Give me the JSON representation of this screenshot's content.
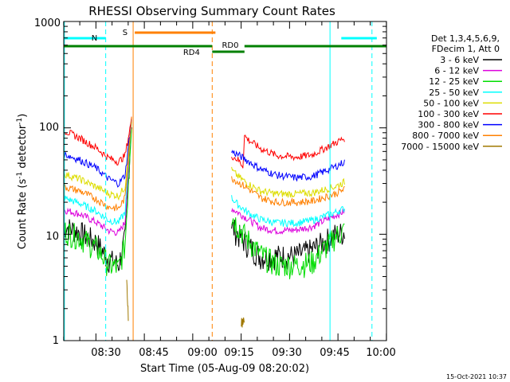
{
  "chart_data": {
    "type": "line",
    "title": "RHESSI Observing Summary Count Rates",
    "xlabel": "Start Time (05-Aug-09 08:20:02)",
    "ylabel_main": "Count Rate (s",
    "ylabel_sup1": "-1",
    "ylabel_mid": " detector",
    "ylabel_sup2": "-1",
    "ylabel_end": ")",
    "y_scale": "log",
    "xlim": [
      "08:20:02",
      "10:00:00"
    ],
    "ylim": [
      1,
      1000
    ],
    "x_ticks": [
      "08:30",
      "08:45",
      "09:00",
      "09:15",
      "09:30",
      "09:45",
      "10:00"
    ],
    "y_ticks": [
      "1",
      "10",
      "100",
      "1000"
    ],
    "legend_header": [
      "Det 1,3,4,5,6,9,",
      "FDecim 1, Att 0"
    ],
    "legend_position": "right",
    "timestamp": "15-Oct-2021 10:37",
    "series": [
      {
        "name": "3 - 6 keV",
        "color": "#000000",
        "pre": [
          [
            0,
            12
          ],
          [
            5,
            10.5
          ],
          [
            10,
            8.5
          ],
          [
            14,
            5.8
          ],
          [
            17,
            5.2
          ],
          [
            19,
            9
          ],
          [
            21,
            120
          ]
        ],
        "post": [
          [
            52,
            12
          ],
          [
            54,
            10
          ],
          [
            57,
            8
          ],
          [
            61,
            6.2
          ],
          [
            66,
            6.3
          ],
          [
            72,
            6.3
          ],
          [
            77,
            7.2
          ],
          [
            84,
            10
          ],
          [
            87,
            10.5
          ]
        ]
      },
      {
        "name": "6 - 12 keV",
        "color": "#dd00dd",
        "pre": [
          [
            0,
            17
          ],
          [
            5,
            15.5
          ],
          [
            10,
            13
          ],
          [
            14,
            10.8
          ],
          [
            17,
            10.3
          ],
          [
            19,
            13
          ],
          [
            21,
            120
          ]
        ],
        "post": [
          [
            52,
            17.5
          ],
          [
            54,
            16
          ],
          [
            57,
            14
          ],
          [
            61,
            11.5
          ],
          [
            66,
            10.8
          ],
          [
            72,
            11
          ],
          [
            77,
            11.8
          ],
          [
            84,
            15
          ],
          [
            87,
            16.5
          ]
        ]
      },
      {
        "name": "12 - 25 keV",
        "color": "#00dd00",
        "pre": [
          [
            0,
            11
          ],
          [
            5,
            9.5
          ],
          [
            10,
            7.5
          ],
          [
            14,
            5.2
          ],
          [
            17,
            4.8
          ],
          [
            19,
            8
          ],
          [
            21,
            120
          ]
        ],
        "post": [
          [
            52,
            15
          ],
          [
            54,
            12
          ],
          [
            57,
            9
          ],
          [
            61,
            6.5
          ],
          [
            66,
            5.2
          ],
          [
            72,
            5.2
          ],
          [
            77,
            5.5
          ],
          [
            84,
            9.5
          ],
          [
            87,
            11
          ]
        ]
      },
      {
        "name": "25 - 50 keV",
        "color": "#00ffff",
        "pre": [
          [
            0,
            22
          ],
          [
            5,
            19.5
          ],
          [
            10,
            16.5
          ],
          [
            14,
            13.5
          ],
          [
            17,
            13
          ],
          [
            19,
            16
          ],
          [
            21,
            120
          ]
        ],
        "post": [
          [
            52,
            22
          ],
          [
            54,
            19
          ],
          [
            57,
            16
          ],
          [
            61,
            13.8
          ],
          [
            66,
            12.8
          ],
          [
            72,
            12.8
          ],
          [
            77,
            13.5
          ],
          [
            84,
            16
          ],
          [
            87,
            17.5
          ]
        ]
      },
      {
        "name": "50 - 100 keV",
        "color": "#dddd00",
        "pre": [
          [
            0,
            37
          ],
          [
            5,
            33
          ],
          [
            10,
            28
          ],
          [
            14,
            24
          ],
          [
            17,
            23
          ],
          [
            19,
            28
          ],
          [
            21,
            120
          ]
        ],
        "post": [
          [
            52,
            40
          ],
          [
            54,
            35
          ],
          [
            57,
            30
          ],
          [
            61,
            25.5
          ],
          [
            66,
            24
          ],
          [
            72,
            24
          ],
          [
            77,
            24.5
          ],
          [
            84,
            28
          ],
          [
            87,
            31
          ]
        ]
      },
      {
        "name": "100 - 300 keV",
        "color": "#ff0000",
        "pre": [
          [
            0,
            95
          ],
          [
            5,
            80
          ],
          [
            10,
            65
          ],
          [
            14,
            52
          ],
          [
            17,
            48
          ],
          [
            19,
            55
          ],
          [
            21,
            120
          ]
        ],
        "post": [
          [
            52,
            55
          ],
          [
            54,
            50
          ],
          [
            55.5,
            44
          ],
          [
            56,
            85
          ],
          [
            57,
            78
          ],
          [
            61,
            64
          ],
          [
            66,
            55
          ],
          [
            72,
            53
          ],
          [
            77,
            56
          ],
          [
            84,
            72
          ],
          [
            87,
            80
          ]
        ]
      },
      {
        "name": "300 - 800 keV",
        "color": "#0000ff",
        "pre": [
          [
            0,
            57
          ],
          [
            5,
            50
          ],
          [
            10,
            42
          ],
          [
            14,
            33
          ],
          [
            17,
            30
          ],
          [
            19,
            36
          ],
          [
            21,
            120
          ]
        ],
        "post": [
          [
            52,
            60
          ],
          [
            54,
            56
          ],
          [
            57,
            49
          ],
          [
            61,
            41
          ],
          [
            66,
            36
          ],
          [
            72,
            34
          ],
          [
            77,
            35
          ],
          [
            84,
            43
          ],
          [
            87,
            48
          ]
        ]
      },
      {
        "name": "800 - 7000 keV",
        "color": "#ff8000",
        "pre": [
          [
            0,
            28
          ],
          [
            5,
            25.5
          ],
          [
            10,
            21.5
          ],
          [
            14,
            18
          ],
          [
            17,
            17.5
          ],
          [
            19,
            22
          ],
          [
            21,
            120
          ]
        ],
        "post": [
          [
            52,
            34
          ],
          [
            54,
            31
          ],
          [
            57,
            27
          ],
          [
            61,
            22
          ],
          [
            66,
            20
          ],
          [
            72,
            20
          ],
          [
            77,
            20.5
          ],
          [
            84,
            24
          ],
          [
            87,
            26.5
          ]
        ]
      },
      {
        "name": "7000 - 15000 keV",
        "color": "#a07800",
        "pre": [
          [
            19.5,
            3.5
          ],
          [
            20,
            1.8
          ]
        ],
        "post": [
          [
            55,
            1.5
          ],
          [
            56,
            1.5
          ]
        ]
      }
    ],
    "annotations": {
      "S": {
        "label": "S",
        "color": "#ff8000",
        "x_start": 22,
        "x_end": 47
      },
      "N_left": {
        "label": "N",
        "color": "#00ffff",
        "x_start": 0,
        "x_end": 13
      },
      "N_right": {
        "label": "",
        "color": "#00ffff",
        "x_start": 86,
        "x_end": 97
      },
      "RD0": {
        "label": "RD0",
        "color": "#008000",
        "x_start": 47,
        "x_end": 100
      },
      "RD4": {
        "label": "RD4",
        "color": "#008000",
        "x_start": 46,
        "x_end": 56
      }
    }
  }
}
